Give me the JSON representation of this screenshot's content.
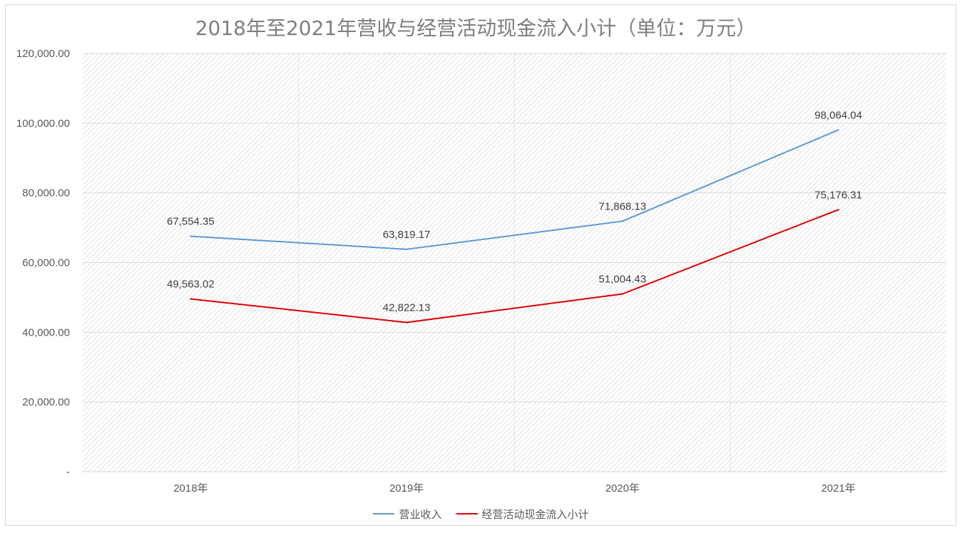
{
  "chart_data": {
    "type": "line",
    "title": "2018年至2021年营收与经营活动现金流入小计（单位：万元）",
    "categories": [
      "2018年",
      "2019年",
      "2020年",
      "2021年"
    ],
    "series": [
      {
        "name": "营业收入",
        "color": "#5b9bd5",
        "values": [
          67554.35,
          63819.17,
          71868.13,
          98064.04
        ],
        "labels": [
          "67,554.35",
          "63,819.17",
          "71,868.13",
          "98,064.04"
        ]
      },
      {
        "name": "经营活动现金流入小计",
        "color": "#e00000",
        "values": [
          49563.02,
          42822.13,
          51004.43,
          75176.31
        ],
        "labels": [
          "49,563.02",
          "42,822.13",
          "51,004.43",
          "75,176.31"
        ]
      }
    ],
    "ylim": [
      0,
      120000
    ],
    "yticks": [
      0,
      20000,
      40000,
      60000,
      80000,
      100000,
      120000
    ],
    "ytick_labels": [
      "-",
      "20,000.00",
      "40,000.00",
      "60,000.00",
      "80,000.00",
      "100,000.00",
      "120,000.00"
    ],
    "grid": true,
    "legend_position": "bottom",
    "xlabel": "",
    "ylabel": ""
  }
}
